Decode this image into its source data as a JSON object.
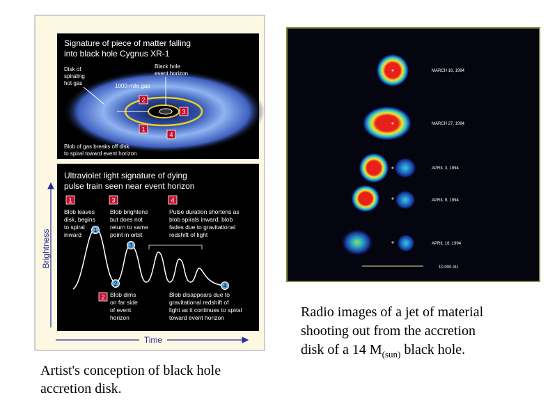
{
  "left_figure": {
    "top_panel": {
      "title": [
        "Signature of piece of matter falling",
        "into black hole Cygnus XR-1"
      ],
      "disk_label": [
        "Disk of",
        "spiraling",
        "hot gas"
      ],
      "horizon_label": [
        "Black hole",
        "event horizon"
      ],
      "gap_label": "1000-mile gap",
      "blob_label": [
        "Blob of gas breaks off disk",
        "to spiral toward event horizon"
      ],
      "markers": [
        2,
        3,
        1,
        4
      ]
    },
    "bottom_panel": {
      "title": [
        "Ultraviolet light signature of dying",
        "pulse train seen near event horizon"
      ],
      "steps": [
        {
          "number": 1,
          "text": [
            "Blob leaves",
            "disk, begins",
            "to spiral",
            "inward"
          ]
        },
        {
          "number": 3,
          "text": [
            "Blob brightens",
            "but does not",
            "return to same",
            "point in orbit"
          ]
        },
        {
          "number": 4,
          "text": [
            "Pulse duration shortens as",
            "blob spirals inward; blob",
            "fades due to gravitational",
            "redshift of light"
          ]
        },
        {
          "number": 2,
          "text": [
            "Blob dims",
            "on far side",
            "of event",
            "horizon"
          ]
        }
      ],
      "final_note": [
        "Blob disappears due to",
        "gravitational redshift of",
        "light as it continues to spiral",
        "toward event horizon"
      ],
      "curve_markers": [
        1,
        2,
        3,
        4
      ]
    },
    "y_axis_label": "Brightness",
    "x_axis_label": "Time"
  },
  "right_figure": {
    "dates": [
      "MARCH 18, 1994",
      "MARCH 27, 1994",
      "APRIL 3, 1994",
      "APRIL 9, 1994",
      "APRIL 16, 1994"
    ],
    "scale_label": "10,000 AU"
  },
  "captions": {
    "left": [
      "Artist's conception of black hole",
      "accretion disk."
    ],
    "right": {
      "lines": [
        "Radio images of a jet of material",
        "shooting out from the accretion",
        "disk of a 14 M"
      ],
      "subscript": "(sun)",
      "tail": " black hole."
    }
  }
}
